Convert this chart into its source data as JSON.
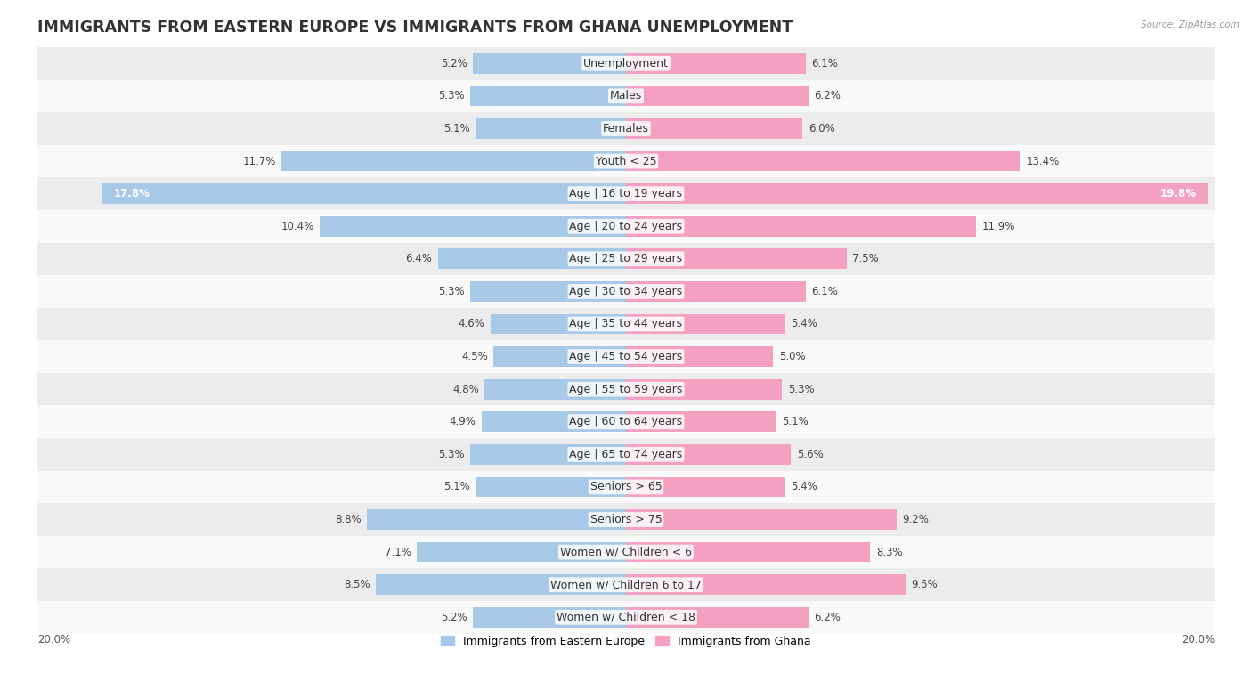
{
  "title": "IMMIGRANTS FROM EASTERN EUROPE VS IMMIGRANTS FROM GHANA UNEMPLOYMENT",
  "source": "Source: ZipAtlas.com",
  "categories": [
    "Unemployment",
    "Males",
    "Females",
    "Youth < 25",
    "Age | 16 to 19 years",
    "Age | 20 to 24 years",
    "Age | 25 to 29 years",
    "Age | 30 to 34 years",
    "Age | 35 to 44 years",
    "Age | 45 to 54 years",
    "Age | 55 to 59 years",
    "Age | 60 to 64 years",
    "Age | 65 to 74 years",
    "Seniors > 65",
    "Seniors > 75",
    "Women w/ Children < 6",
    "Women w/ Children 6 to 17",
    "Women w/ Children < 18"
  ],
  "left_values": [
    5.2,
    5.3,
    5.1,
    11.7,
    17.8,
    10.4,
    6.4,
    5.3,
    4.6,
    4.5,
    4.8,
    4.9,
    5.3,
    5.1,
    8.8,
    7.1,
    8.5,
    5.2
  ],
  "right_values": [
    6.1,
    6.2,
    6.0,
    13.4,
    19.8,
    11.9,
    7.5,
    6.1,
    5.4,
    5.0,
    5.3,
    5.1,
    5.6,
    5.4,
    9.2,
    8.3,
    9.5,
    6.2
  ],
  "left_color": "#a8c8e8",
  "right_color": "#f4a0c0",
  "left_label": "Immigrants from Eastern Europe",
  "right_label": "Immigrants from Ghana",
  "axis_max": 20.0,
  "bg_color_odd": "#ececec",
  "bg_color_even": "#f9f9f9",
  "bar_height": 0.62,
  "title_fontsize": 12.5,
  "label_fontsize": 9,
  "value_fontsize": 8.5,
  "white_text_threshold": 15.0
}
